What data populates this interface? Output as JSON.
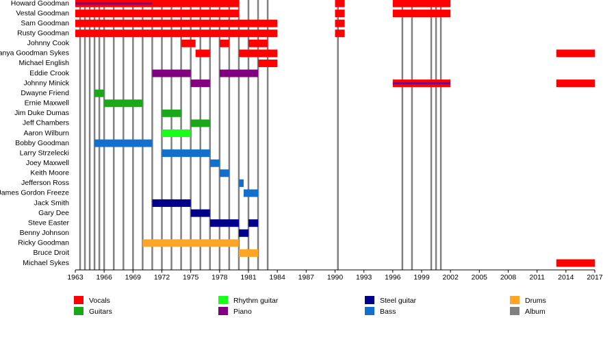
{
  "chart_data": {
    "type": "timeline",
    "xlim": [
      1963,
      2017
    ],
    "xticks": [
      1963,
      1966,
      1969,
      1972,
      1975,
      1978,
      1981,
      1984,
      1987,
      1990,
      1993,
      1996,
      1999,
      2002,
      2005,
      2008,
      2011,
      2014,
      2017
    ],
    "roles": [
      {
        "name": "Vocals",
        "color": "#ff0000"
      },
      {
        "name": "Guitars",
        "color": "#1aa71a"
      },
      {
        "name": "Rhythm guitar",
        "color": "#1aff1a"
      },
      {
        "name": "Piano",
        "color": "#800080"
      },
      {
        "name": "Steel guitar",
        "color": "#00008b"
      },
      {
        "name": "Bass",
        "color": "#1270cc"
      },
      {
        "name": "Drums",
        "color": "#ffa526"
      },
      {
        "name": "Album",
        "color": "#808080"
      }
    ],
    "albums": [
      1963.5,
      1964,
      1964.5,
      1965,
      1965.5,
      1966,
      1967,
      1968,
      1969,
      1970,
      1971,
      1972,
      1973,
      1974,
      1975,
      1976,
      1977,
      1978,
      1979,
      1980,
      1981,
      1982,
      1983,
      1990.3,
      1997,
      1998,
      2000,
      2000.5,
      2001
    ],
    "members": [
      {
        "name": "Howard Goodman",
        "spans": [
          {
            "role": 0,
            "start": 1963,
            "end": 1980
          },
          {
            "role": 3,
            "start": 1963,
            "end": 1971
          },
          {
            "role": 0,
            "start": 1990,
            "end": 1991
          },
          {
            "role": 0,
            "start": 1996,
            "end": 2002
          }
        ]
      },
      {
        "name": "Vestal Goodman",
        "spans": [
          {
            "role": 0,
            "start": 1963,
            "end": 1980
          },
          {
            "role": 0,
            "start": 1990,
            "end": 1991
          },
          {
            "role": 0,
            "start": 1996,
            "end": 2002
          }
        ]
      },
      {
        "name": "Sam Goodman",
        "spans": [
          {
            "role": 0,
            "start": 1963,
            "end": 1984
          },
          {
            "role": 0,
            "start": 1990,
            "end": 1991
          }
        ]
      },
      {
        "name": "Rusty Goodman",
        "spans": [
          {
            "role": 0,
            "start": 1963,
            "end": 1984
          },
          {
            "role": 0,
            "start": 1990,
            "end": 1991
          }
        ]
      },
      {
        "name": "Johnny Cook",
        "spans": [
          {
            "role": 0,
            "start": 1974,
            "end": 1975.5
          },
          {
            "role": 0,
            "start": 1978,
            "end": 1979
          },
          {
            "role": 0,
            "start": 1981,
            "end": 1983
          }
        ]
      },
      {
        "name": "Tanya Goodman Sykes",
        "spans": [
          {
            "role": 0,
            "start": 1975.5,
            "end": 1977
          },
          {
            "role": 0,
            "start": 1980,
            "end": 1984
          },
          {
            "role": 0,
            "start": 2013,
            "end": 2017
          }
        ]
      },
      {
        "name": "Michael English",
        "spans": [
          {
            "role": 0,
            "start": 1982,
            "end": 1984
          }
        ]
      },
      {
        "name": "Eddie Crook",
        "spans": [
          {
            "role": 3,
            "start": 1971,
            "end": 1975
          },
          {
            "role": 3,
            "start": 1978,
            "end": 1982
          }
        ]
      },
      {
        "name": "Johnny Minick",
        "spans": [
          {
            "role": 3,
            "start": 1975,
            "end": 1977
          },
          {
            "role": 0,
            "start": 1996,
            "end": 2002
          },
          {
            "role": 3,
            "start": 1996,
            "end": 2002
          },
          {
            "role": 0,
            "start": 2013,
            "end": 2017
          }
        ]
      },
      {
        "name": "Dwayne Friend",
        "spans": [
          {
            "role": 1,
            "start": 1965,
            "end": 1966
          }
        ]
      },
      {
        "name": "Ernie Maxwell",
        "spans": [
          {
            "role": 1,
            "start": 1966,
            "end": 1970
          }
        ]
      },
      {
        "name": "Jim Duke Dumas",
        "spans": [
          {
            "role": 1,
            "start": 1972,
            "end": 1974
          }
        ]
      },
      {
        "name": "Jeff Chambers",
        "spans": [
          {
            "role": 1,
            "start": 1975,
            "end": 1977
          }
        ]
      },
      {
        "name": "Aaron Wilburn",
        "spans": [
          {
            "role": 2,
            "start": 1972,
            "end": 1975
          }
        ]
      },
      {
        "name": "Bobby Goodman",
        "spans": [
          {
            "role": 5,
            "start": 1965,
            "end": 1971
          }
        ]
      },
      {
        "name": "Larry Strzelecki",
        "spans": [
          {
            "role": 5,
            "start": 1972,
            "end": 1977
          }
        ]
      },
      {
        "name": "Joey Maxwell",
        "spans": [
          {
            "role": 5,
            "start": 1977,
            "end": 1978
          }
        ]
      },
      {
        "name": "Keith Moore",
        "spans": [
          {
            "role": 5,
            "start": 1978,
            "end": 1979
          }
        ]
      },
      {
        "name": "Jefferson Ross",
        "spans": [
          {
            "role": 5,
            "start": 1980,
            "end": 1980.5
          }
        ]
      },
      {
        "name": "James Gordon Freeze",
        "spans": [
          {
            "role": 5,
            "start": 1980.5,
            "end": 1982
          }
        ]
      },
      {
        "name": "Jack Smith",
        "spans": [
          {
            "role": 4,
            "start": 1971,
            "end": 1975
          }
        ]
      },
      {
        "name": "Gary Dee",
        "spans": [
          {
            "role": 4,
            "start": 1975,
            "end": 1977
          }
        ]
      },
      {
        "name": "Steve Easter",
        "spans": [
          {
            "role": 4,
            "start": 1977,
            "end": 1980
          },
          {
            "role": 4,
            "start": 1981,
            "end": 1982
          }
        ]
      },
      {
        "name": "Benny Johnson",
        "spans": [
          {
            "role": 4,
            "start": 1980,
            "end": 1981
          }
        ]
      },
      {
        "name": "Ricky Goodman",
        "spans": [
          {
            "role": 6,
            "start": 1970,
            "end": 1980
          }
        ]
      },
      {
        "name": "Bruce Droit",
        "spans": [
          {
            "role": 6,
            "start": 1980,
            "end": 1982
          }
        ]
      },
      {
        "name": "Michael Sykes",
        "spans": [
          {
            "role": 0,
            "start": 2013,
            "end": 2017
          }
        ]
      }
    ]
  }
}
